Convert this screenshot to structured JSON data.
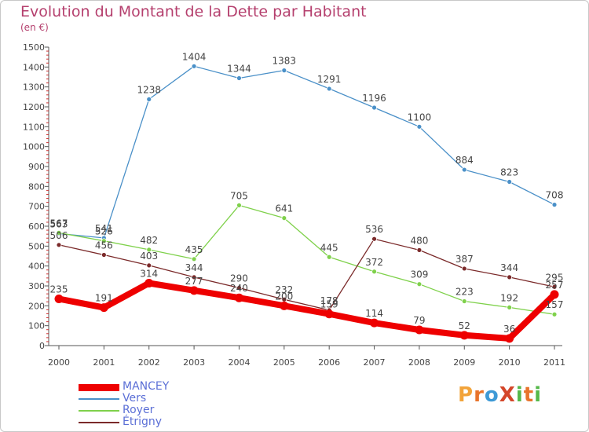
{
  "title": "Evolution du Montant de la Dette par Habitant",
  "subtitle": "(en €)",
  "logo": {
    "text": "ProXiti",
    "letters": [
      "P",
      "r",
      "o",
      "X",
      "i",
      "t",
      "i"
    ],
    "colors": [
      "#f2a33a",
      "#e8742c",
      "#3e9ad6",
      "#d4462a",
      "#55b84a",
      "#e8742c",
      "#55b84a"
    ]
  },
  "chart_data": {
    "type": "line",
    "title": "Evolution du Montant de la Dette par Habitant",
    "ylabel": "(en €)",
    "x": [
      "2000",
      "2001",
      "2002",
      "2003",
      "2004",
      "2005",
      "2006",
      "2007",
      "2008",
      "2009",
      "2010",
      "2011"
    ],
    "ylim": [
      0,
      1500
    ],
    "yticks": [
      0,
      100,
      200,
      300,
      400,
      500,
      600,
      700,
      800,
      900,
      1000,
      1100,
      1200,
      1300,
      1400,
      1500
    ],
    "grid": false,
    "legend_position": "bottom-left",
    "series": [
      {
        "name": "MANCEY",
        "color": "#ee0000",
        "values": [
          235,
          191,
          314,
          277,
          240,
          200,
          159,
          114,
          79,
          52,
          36,
          257
        ]
      },
      {
        "name": "Vers",
        "color": "#4a90c8",
        "values": [
          563,
          541,
          1238,
          1404,
          1344,
          1383,
          1291,
          1196,
          1100,
          884,
          823,
          708
        ]
      },
      {
        "name": "Royer",
        "color": "#7fd14b",
        "values": [
          567,
          526,
          482,
          435,
          705,
          641,
          445,
          372,
          309,
          223,
          192,
          157
        ]
      },
      {
        "name": "Étrigny",
        "color": "#7b2a2a",
        "values": [
          506,
          456,
          403,
          344,
          290,
          232,
          178,
          536,
          480,
          387,
          344,
          295
        ]
      }
    ]
  }
}
